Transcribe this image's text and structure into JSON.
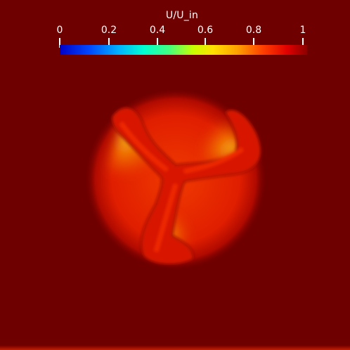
{
  "colorbar": {
    "title": "U/U_in",
    "ticks": [
      "0",
      "0.2",
      "0.4",
      "0.6",
      "0.8",
      "1"
    ],
    "range": [
      0,
      1
    ],
    "colormap": [
      "#0000c8",
      "#00b4ff",
      "#40ff80",
      "#ffe000",
      "#ff4000",
      "#8a0000"
    ]
  },
  "scene": {
    "background_color": "#6e0000",
    "wake_color": "#e01800",
    "blade_color": "#d01400",
    "inner_highlight_color": "#f0c020"
  }
}
